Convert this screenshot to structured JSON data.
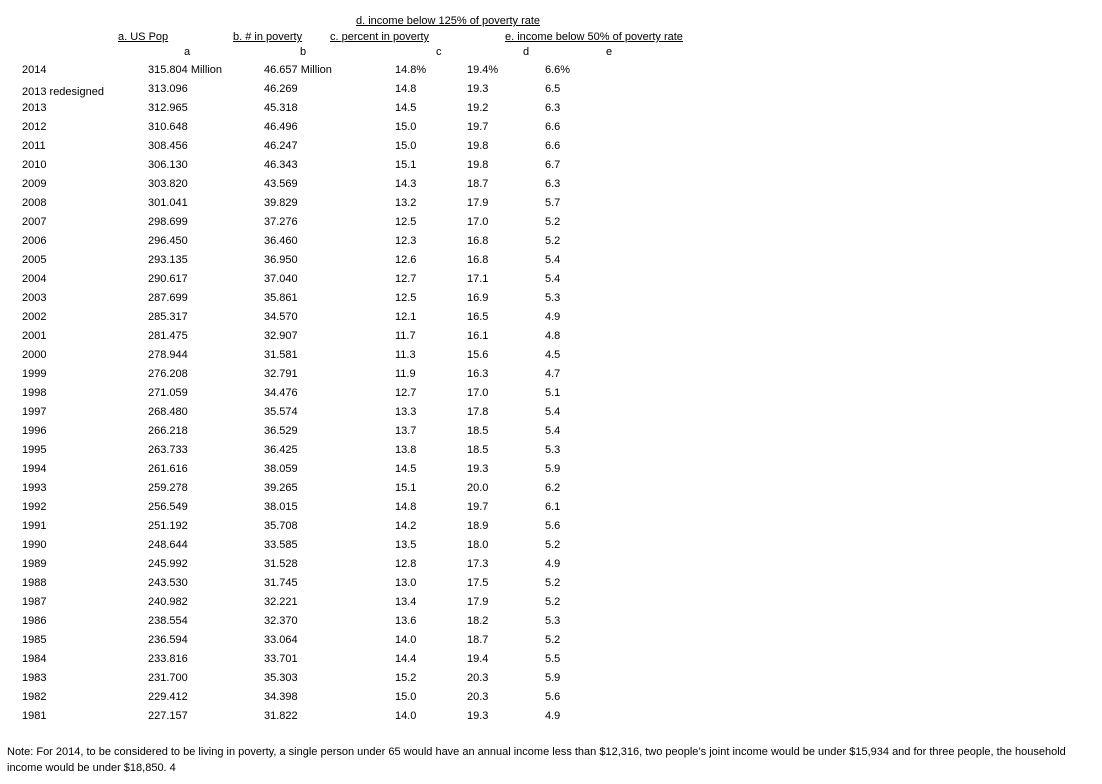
{
  "headers": {
    "d_title": "d. income  below 125% of poverty rate",
    "a_title": "a. US Pop",
    "b_title": "b. # in poverty",
    "c_title": "c. percent in poverty",
    "e_title": "e. income below 50% of poverty rate",
    "letter_a": "a",
    "letter_b": "b",
    "letter_c": "c",
    "letter_d": "d",
    "letter_e": "e"
  },
  "rows": [
    {
      "year": "2014",
      "a": "315.804 Million",
      "b": "46.657 Million",
      "c": "14.8%",
      "d": "19.4%",
      "e": "6.6%"
    },
    {
      "year": "2013 redesigned",
      "a": "313.096",
      "b": "46.269",
      "c": "14.8",
      "d": "19.3",
      "e": "6.5"
    },
    {
      "year": "2013",
      "a": "312.965",
      "b": "45.318",
      "c": "14.5",
      "d": "19.2",
      "e": "6.3"
    },
    {
      "year": "2012",
      "a": "310.648",
      "b": "46.496",
      "c": "15.0",
      "d": "19.7",
      "e": "6.6"
    },
    {
      "year": "2011",
      "a": "308.456",
      "b": "46.247",
      "c": "15.0",
      "d": "19.8",
      "e": "6.6"
    },
    {
      "year": "2010",
      "a": "306.130",
      "b": "46.343",
      "c": "15.1",
      "d": "19.8",
      "e": "6.7"
    },
    {
      "year": "2009",
      "a": "303.820",
      "b": "43.569",
      "c": "14.3",
      "d": "18.7",
      "e": "6.3"
    },
    {
      "year": "2008",
      "a": "301.041",
      "b": "39.829",
      "c": "13.2",
      "d": "17.9",
      "e": "5.7"
    },
    {
      "year": "2007",
      "a": "298.699",
      "b": "37.276",
      "c": "12.5",
      "d": "17.0",
      "e": "5.2"
    },
    {
      "year": "2006",
      "a": "296.450",
      "b": "36.460",
      "c": "12.3",
      "d": "16.8",
      "e": "5.2"
    },
    {
      "year": "2005",
      "a": "293.135",
      "b": "36.950",
      "c": "12.6",
      "d": "16.8",
      "e": "5.4"
    },
    {
      "year": "2004",
      "a": "290.617",
      "b": "37.040",
      "c": "12.7",
      "d": "17.1",
      "e": "5.4"
    },
    {
      "year": "2003",
      "a": "287.699",
      "b": "35.861",
      "c": "12.5",
      "d": "16.9",
      "e": "5.3"
    },
    {
      "year": "2002",
      "a": "285.317",
      "b": "34.570",
      "c": "12.1",
      "d": "16.5",
      "e": "4.9"
    },
    {
      "year": "2001",
      "a": "281.475",
      "b": "32.907",
      "c": "11.7",
      "d": "16.1",
      "e": "4.8"
    },
    {
      "year": "2000",
      "a": "278.944",
      "b": "31.581",
      "c": "11.3",
      "d": "15.6",
      "e": "4.5"
    },
    {
      "year": "1999",
      "a": "276.208",
      "b": "32.791",
      "c": "11.9",
      "d": "16.3",
      "e": "4.7"
    },
    {
      "year": "1998",
      "a": "271.059",
      "b": "34.476",
      "c": "12.7",
      "d": "17.0",
      "e": "5.1"
    },
    {
      "year": "1997",
      "a": "268.480",
      "b": "35.574",
      "c": "13.3",
      "d": "17.8",
      "e": "5.4"
    },
    {
      "year": "1996",
      "a": "266.218",
      "b": "36.529",
      "c": "13.7",
      "d": "18.5",
      "e": "5.4"
    },
    {
      "year": "1995",
      "a": "263.733",
      "b": "36.425",
      "c": "13.8",
      "d": "18.5",
      "e": "5.3"
    },
    {
      "year": "1994",
      "a": "261.616",
      "b": "38.059",
      "c": "14.5",
      "d": "19.3",
      "e": "5.9"
    },
    {
      "year": "1993",
      "a": "259.278",
      "b": "39.265",
      "c": "15.1",
      "d": "20.0",
      "e": "6.2"
    },
    {
      "year": "1992",
      "a": "256.549",
      "b": "38.015",
      "c": "14.8",
      "d": "19.7",
      "e": "6.1"
    },
    {
      "year": "1991",
      "a": "251.192",
      "b": "35.708",
      "c": "14.2",
      "d": "18.9",
      "e": "5.6"
    },
    {
      "year": "1990",
      "a": "248.644",
      "b": "33.585",
      "c": "13.5",
      "d": "18.0",
      "e": "5.2"
    },
    {
      "year": "1989",
      "a": "245.992",
      "b": "31.528",
      "c": "12.8",
      "d": "17.3",
      "e": "4.9"
    },
    {
      "year": "1988",
      "a": "243.530",
      "b": "31.745",
      "c": "13.0",
      "d": "17.5",
      "e": "5.2"
    },
    {
      "year": "1987",
      "a": "240.982",
      "b": "32.221",
      "c": "13.4",
      "d": "17.9",
      "e": "5.2"
    },
    {
      "year": "1986",
      "a": "238.554",
      "b": "32.370",
      "c": "13.6",
      "d": "18.2",
      "e": "5.3"
    },
    {
      "year": "1985",
      "a": "236.594",
      "b": "33.064",
      "c": "14.0",
      "d": "18.7",
      "e": "5.2"
    },
    {
      "year": "1984",
      "a": "233.816",
      "b": "33.701",
      "c": "14.4",
      "d": "19.4",
      "e": "5.5"
    },
    {
      "year": "1983",
      "a": "231.700",
      "b": "35.303",
      "c": "15.2",
      "d": "20.3",
      "e": "5.9"
    },
    {
      "year": "1982",
      "a": "229.412",
      "b": "34.398",
      "c": "15.0",
      "d": "20.3",
      "e": "5.6"
    },
    {
      "year": "1981",
      "a": "227.157",
      "b": "31.822",
      "c": "14.0",
      "d": "19.3",
      "e": "4.9"
    }
  ],
  "note": "Note:  For 2014, to be considered to be living in poverty, a single person under 65 would have an annual income less than $12,316, two people’s joint income would be under $15,934 and for three people, the household income would be under $18,850. 4"
}
